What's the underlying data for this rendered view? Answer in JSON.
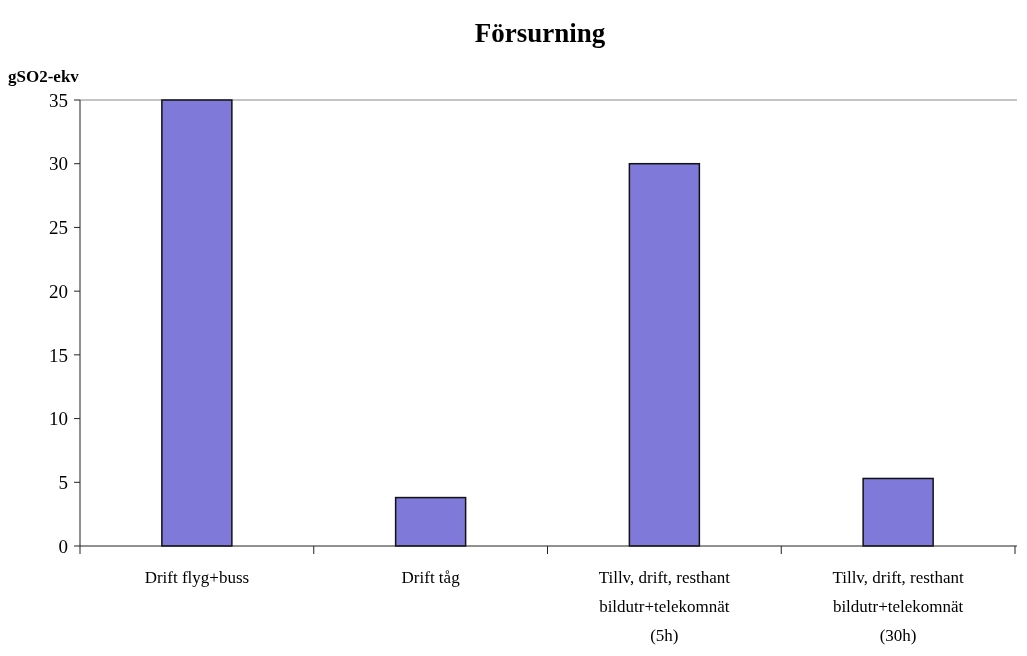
{
  "chart_data": {
    "type": "bar",
    "title": "Försurning",
    "ylabel": "gSO2-ekv",
    "categories": [
      "Drift flyg+buss",
      "Drift tåg",
      "Tillv, drift, resthant bildutr+telekomnät (5h)",
      "Tillv, drift, resthant bildutr+telekomnät (30h)"
    ],
    "values": [
      35,
      3.8,
      30,
      5.3
    ],
    "color": "#7f79d9",
    "ylim": [
      0,
      35
    ],
    "yticks": [
      0,
      5,
      10,
      15,
      20,
      25,
      30,
      35
    ]
  }
}
